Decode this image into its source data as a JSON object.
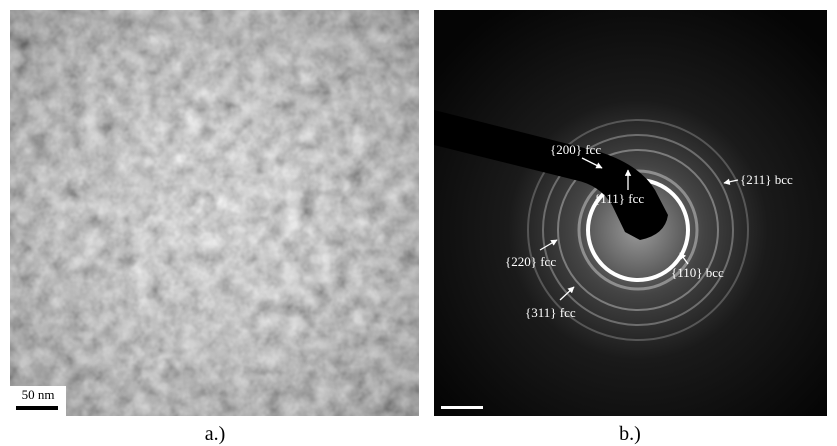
{
  "panels": [
    {
      "caption": "a.)",
      "scale_bar": "50 nm"
    },
    {
      "caption": "b.)",
      "ring_labels": [
        "{200} fcc",
        "{111} fcc",
        "{211} bcc",
        "{220} fcc",
        "{110} bcc",
        "{311} fcc"
      ]
    }
  ]
}
